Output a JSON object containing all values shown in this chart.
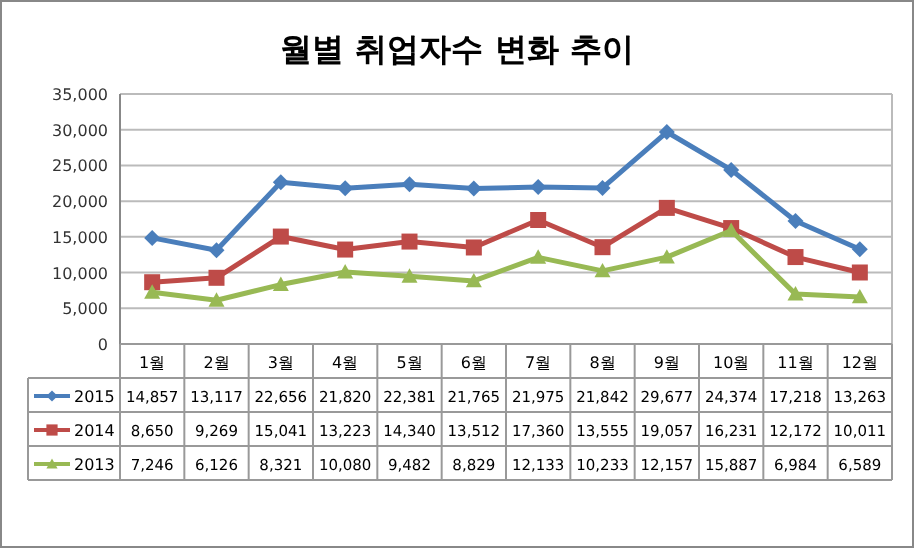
{
  "chart_data": {
    "type": "line",
    "title": "월별 취업자수 변화 추이",
    "categories": [
      "1월",
      "2월",
      "3월",
      "4월",
      "5월",
      "6월",
      "7월",
      "8월",
      "9월",
      "10월",
      "11월",
      "12월"
    ],
    "series": [
      {
        "name": "2015",
        "color": "#4a7ebb",
        "marker": "diamond",
        "values": [
          14857,
          13117,
          22656,
          21820,
          22381,
          21765,
          21975,
          21842,
          29677,
          24374,
          17218,
          13263
        ],
        "value_labels": [
          "14,857",
          "13,117",
          "22,656",
          "21,820",
          "22,381",
          "21,765",
          "21,975",
          "21,842",
          "29,677",
          "24,374",
          "17,218",
          "13,263"
        ]
      },
      {
        "name": "2014",
        "color": "#be4b48",
        "marker": "square",
        "values": [
          8650,
          9269,
          15041,
          13223,
          14340,
          13512,
          17360,
          13555,
          19057,
          16231,
          12172,
          10011
        ],
        "value_labels": [
          "8,650",
          "9,269",
          "15,041",
          "13,223",
          "14,340",
          "13,512",
          "17,360",
          "13,555",
          "19,057",
          "16,231",
          "12,172",
          "10,011"
        ]
      },
      {
        "name": "2013",
        "color": "#98b954",
        "marker": "triangle",
        "values": [
          7246,
          6126,
          8321,
          10080,
          9482,
          8829,
          12133,
          10233,
          12157,
          15887,
          6984,
          6589
        ],
        "value_labels": [
          "7,246",
          "6,126",
          "8,321",
          "10,080",
          "9,482",
          "8,829",
          "12,133",
          "10,233",
          "12,157",
          "15,887",
          "6,984",
          "6,589"
        ]
      }
    ],
    "ylim": [
      0,
      35000
    ],
    "yticks": [
      {
        "value": 0,
        "label": "0"
      },
      {
        "value": 5000,
        "label": "5,000"
      },
      {
        "value": 10000,
        "label": "10,000"
      },
      {
        "value": 15000,
        "label": "15,000"
      },
      {
        "value": 20000,
        "label": "20,000"
      },
      {
        "value": 25000,
        "label": "25,000"
      },
      {
        "value": 30000,
        "label": "30,000"
      },
      {
        "value": 35000,
        "label": "35,000"
      }
    ],
    "grid": "y",
    "legend": "bottom"
  }
}
